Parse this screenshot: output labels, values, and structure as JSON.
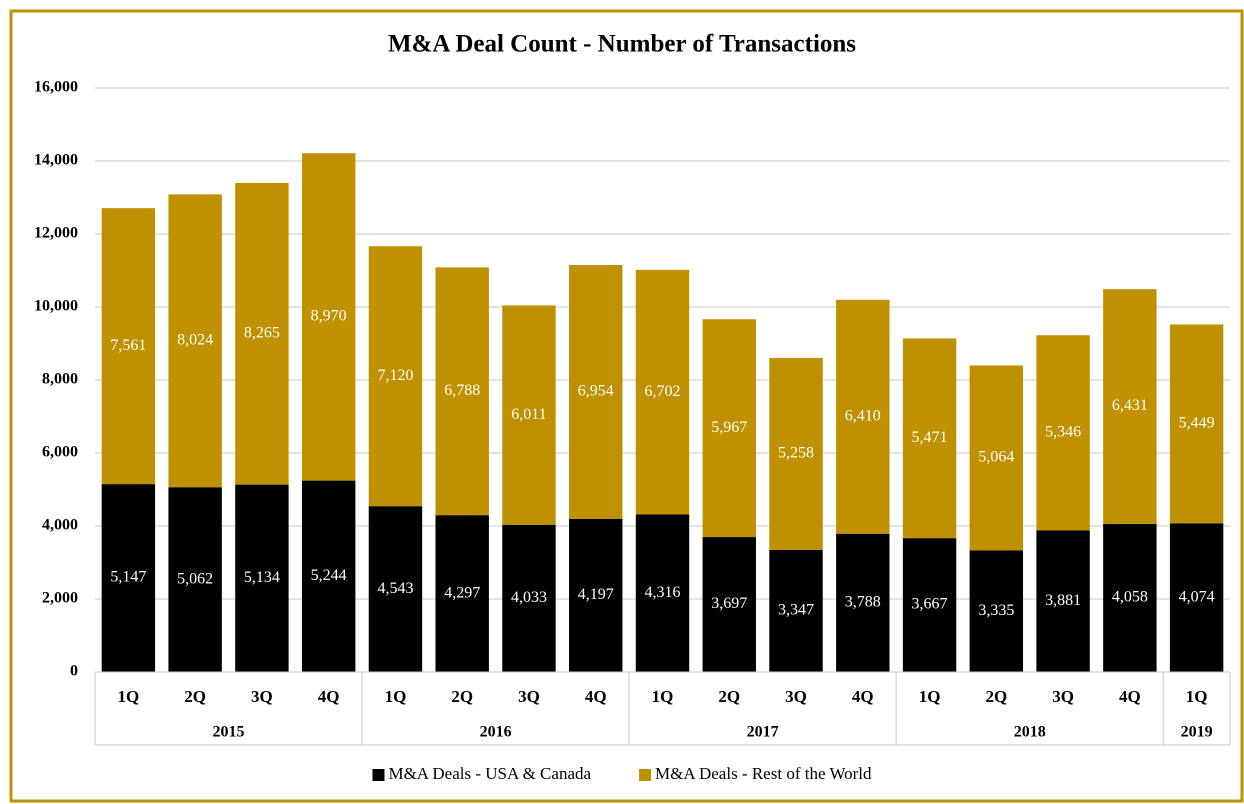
{
  "chart_data": {
    "type": "stacked-bar",
    "title": "M&A Deal Count - Number of Transactions",
    "groups": [
      {
        "name": "2015",
        "categories": [
          "1Q",
          "2Q",
          "3Q",
          "4Q"
        ]
      },
      {
        "name": "2016",
        "categories": [
          "1Q",
          "2Q",
          "3Q",
          "4Q"
        ]
      },
      {
        "name": "2017",
        "categories": [
          "1Q",
          "2Q",
          "3Q",
          "4Q"
        ]
      },
      {
        "name": "2018",
        "categories": [
          "1Q",
          "2Q",
          "3Q",
          "4Q"
        ]
      },
      {
        "name": "2019",
        "categories": [
          "1Q"
        ]
      }
    ],
    "series": [
      {
        "name": "M&A Deals - USA & Canada",
        "color": "#000000",
        "label_color": "#ffffff",
        "values": [
          5147,
          5062,
          5134,
          5244,
          4543,
          4297,
          4033,
          4197,
          4316,
          3697,
          3347,
          3788,
          3667,
          3335,
          3881,
          4058,
          4074
        ],
        "value_labels": [
          "5,147",
          "5,062",
          "5,134",
          "5,244",
          "4,543",
          "4,297",
          "4,033",
          "4,197",
          "4,316",
          "3,697",
          "3,347",
          "3,788",
          "3,667",
          "3,335",
          "3,881",
          "4,058",
          "4,074"
        ]
      },
      {
        "name": "M&A Deals - Rest of the World",
        "color": "#bf9000",
        "label_color": "#ffffff",
        "values": [
          7561,
          8024,
          8265,
          8970,
          7120,
          6788,
          6011,
          6954,
          6702,
          5967,
          5258,
          6410,
          5471,
          5064,
          5346,
          6431,
          5449
        ],
        "value_labels": [
          "7,561",
          "8,024",
          "8,265",
          "8,970",
          "7,120",
          "6,788",
          "6,011",
          "6,954",
          "6,702",
          "5,967",
          "5,258",
          "6,410",
          "5,471",
          "5,064",
          "5,346",
          "6,431",
          "5,449"
        ]
      }
    ],
    "ylim": [
      0,
      16000
    ],
    "yticks": [
      0,
      {
        "value": 2000,
        "label": "2,000"
      },
      {
        "value": 4000,
        "label": "4,000"
      },
      {
        "value": 6000,
        "label": "6,000"
      },
      {
        "value": 8000,
        "label": "8,000"
      },
      {
        "value": 10000,
        "label": "10,000"
      },
      {
        "value": 12000,
        "label": "12,000"
      },
      {
        "value": 14000,
        "label": "14,000"
      },
      {
        "value": 16000,
        "label": "16,000"
      }
    ],
    "grid": true,
    "legend": "bottom"
  }
}
